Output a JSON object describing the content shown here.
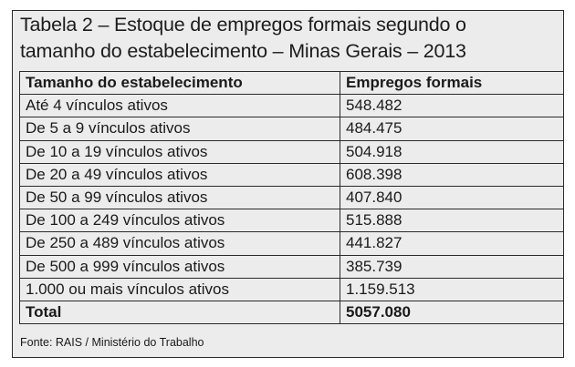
{
  "caption": {
    "line1": "Tabela 2 – Estoque de empregos formais segundo o",
    "line2": "tamanho do estabelecimento – Minas Gerais – 2013"
  },
  "table": {
    "headers": [
      "Tamanho do estabelecimento",
      "Empregos formais"
    ],
    "rows": [
      [
        "Até 4 vínculos ativos",
        "548.482"
      ],
      [
        "De 5 a 9 vínculos ativos",
        "484.475"
      ],
      [
        "De 10 a 19 vínculos ativos",
        "504.918"
      ],
      [
        "De 20 a 49 vínculos ativos",
        "608.398"
      ],
      [
        "De 50 a 99 vínculos ativos",
        "407.840"
      ],
      [
        "De 100 a 249 vínculos ativos",
        "515.888"
      ],
      [
        "De 250 a 489 vínculos ativos",
        "441.827"
      ],
      [
        "De 500 a 999 vínculos ativos",
        "385.739"
      ],
      [
        "1.000 ou mais vínculos ativos",
        "1.159.513"
      ]
    ],
    "total": [
      "Total",
      "5057.080"
    ]
  },
  "source": "Fonte: RAIS / Ministério do Trabalho"
}
